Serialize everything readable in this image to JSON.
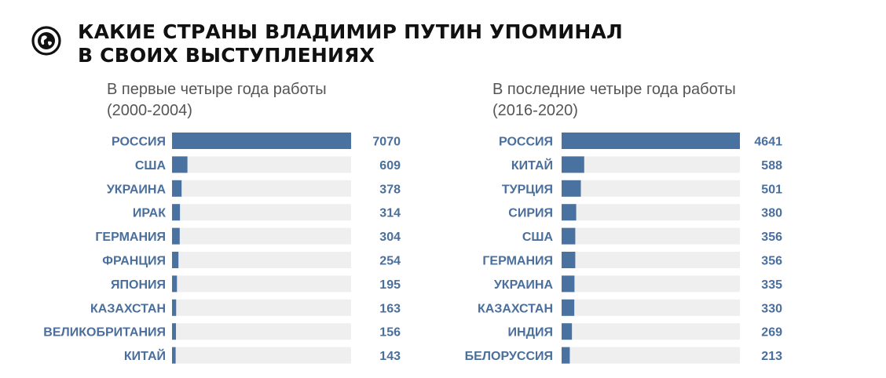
{
  "header": {
    "title_line1": "КАКИЕ СТРАНЫ ВЛАДИМИР ПУТИН УПОМИНАЛ",
    "title_line2": "В СВОИХ ВЫСТУПЛЕНИЯХ",
    "logo_icon": "globe-icon"
  },
  "colors": {
    "bar": "#4a72a0",
    "track": "#efefef",
    "label": "#4a6f9c",
    "title": "#111111",
    "subtitle": "#555555"
  },
  "chart_data": [
    {
      "type": "bar",
      "orientation": "horizontal",
      "title_line1": "В первые четыре года работы",
      "title_line2": "(2000-2004)",
      "categories": [
        "РОССИЯ",
        "США",
        "УКРАИНА",
        "ИРАК",
        "ГЕРМАНИЯ",
        "ФРАНЦИЯ",
        "ЯПОНИЯ",
        "КАЗАХСТАН",
        "ВЕЛИКОБРИТАНИЯ",
        "КИТАЙ"
      ],
      "values": [
        7070,
        609,
        378,
        314,
        304,
        254,
        195,
        163,
        156,
        143
      ],
      "xlim": [
        0,
        7070
      ],
      "grid": false,
      "legend": "none"
    },
    {
      "type": "bar",
      "orientation": "horizontal",
      "title_line1": "В последние четыре года работы",
      "title_line2": "(2016-2020)",
      "categories": [
        "РОССИЯ",
        "КИТАЙ",
        "ТУРЦИЯ",
        "СИРИЯ",
        "США",
        "ГЕРМАНИЯ",
        "УКРАИНА",
        "КАЗАХСТАН",
        "ИНДИЯ",
        "БЕЛОРУССИЯ"
      ],
      "values": [
        4641,
        588,
        501,
        380,
        356,
        356,
        335,
        330,
        269,
        213
      ],
      "xlim": [
        0,
        4641
      ],
      "grid": false,
      "legend": "none"
    }
  ]
}
